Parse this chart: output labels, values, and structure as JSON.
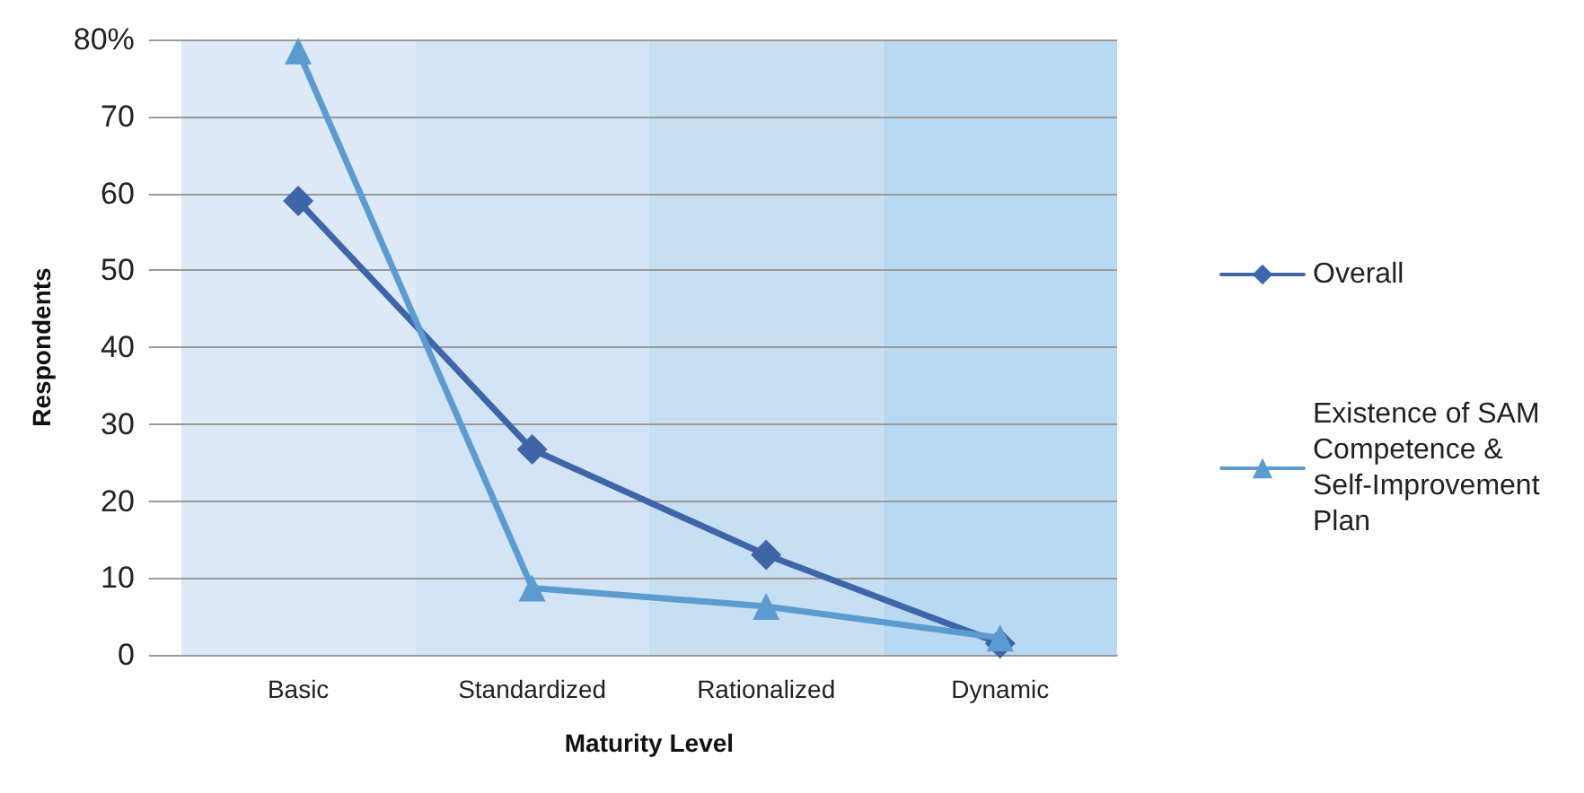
{
  "chart_data": {
    "type": "line",
    "xlabel": "Maturity Level",
    "ylabel": "Respondents",
    "categories": [
      "Basic",
      "Standardized",
      "Rationalized",
      "Dynamic"
    ],
    "series": [
      {
        "name": "Overall",
        "color": "#3f65a9",
        "marker": "diamond",
        "values": [
          59,
          26.7,
          13,
          1.5
        ]
      },
      {
        "name": "Existence of SAM Competence & Self-Improvement Plan",
        "color": "#5b9bd0",
        "marker": "triangle",
        "values": [
          78.5,
          8.7,
          6.3,
          2.2
        ]
      }
    ],
    "ylim": [
      0,
      80
    ],
    "yticks": [
      0,
      10,
      20,
      30,
      40,
      50,
      60,
      70,
      {
        "value": 80,
        "label": "80%"
      }
    ],
    "bands": [
      {
        "axis": "x",
        "from": "Basic",
        "to": "Basic",
        "color": "#dde9f6"
      },
      {
        "axis": "x",
        "from": "Standardized",
        "to": "Standardized",
        "color": "#d2e4f5"
      },
      {
        "axis": "x",
        "from": "Rationalized",
        "to": "Rationalized",
        "color": "#c6dff3"
      },
      {
        "axis": "x",
        "from": "Dynamic",
        "to": "Dynamic",
        "color": "#b8d9f1"
      }
    ],
    "grid": "y",
    "legend": "right",
    "line_style": "solid"
  }
}
